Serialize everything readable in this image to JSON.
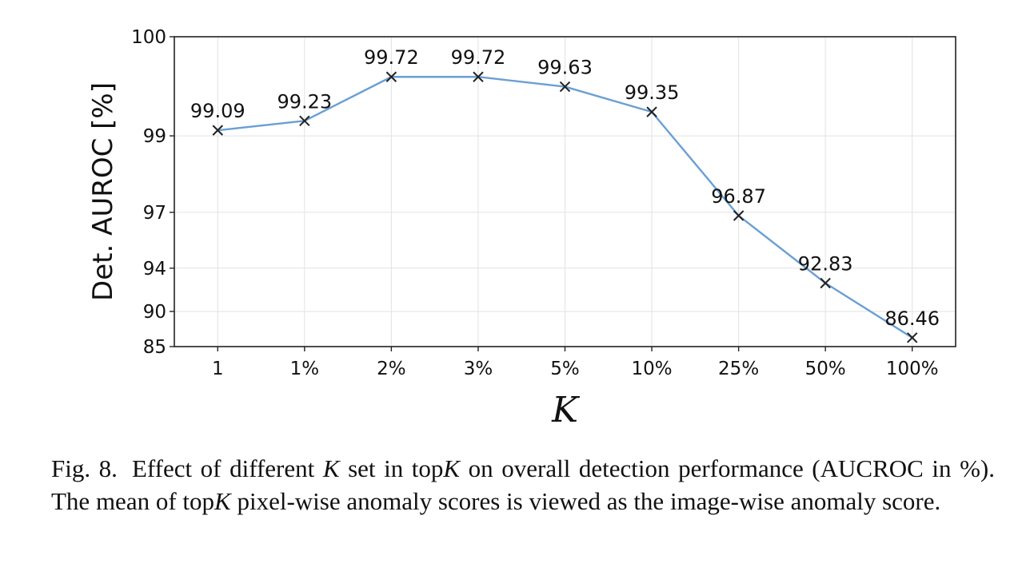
{
  "chart_data": {
    "type": "line",
    "title": "",
    "xlabel": "K",
    "ylabel": "Det. AUROC [%]",
    "categories": [
      "1",
      "1%",
      "2%",
      "3%",
      "5%",
      "10%",
      "25%",
      "50%",
      "100%"
    ],
    "series": [
      {
        "values": [
          99.09,
          99.23,
          99.72,
          99.72,
          99.63,
          99.35,
          96.87,
          92.83,
          86.46
        ],
        "color": "#6a9fd4",
        "marker": "x"
      }
    ],
    "data_labels": [
      "99.09",
      "99.23",
      "99.72",
      "99.72",
      "99.63",
      "99.35",
      "96.87",
      "92.83",
      "86.46"
    ],
    "y_ticks": [
      100,
      99,
      97,
      94,
      90,
      85
    ],
    "y_tick_labels": [
      "100",
      "99",
      "97",
      "94",
      "90",
      "85"
    ],
    "y_scale": "nonlinear (log of 100 - y)",
    "ylim": [
      85,
      100
    ],
    "grid": true,
    "line_color": "#6a9fd4",
    "marker_color": "#222222"
  },
  "caption": {
    "prefix": "Fig. 8.",
    "parts": [
      {
        "text": "Effect of different ",
        "italic": false
      },
      {
        "text": "K",
        "italic": true
      },
      {
        "text": " set in top",
        "italic": false
      },
      {
        "text": "K",
        "italic": true
      },
      {
        "text": " on overall detection performance (AUCROC in %). The mean of top",
        "italic": false
      },
      {
        "text": "K",
        "italic": true
      },
      {
        "text": " pixel-wise anomaly scores is viewed as the image-wise anomaly score.",
        "italic": false
      }
    ]
  }
}
